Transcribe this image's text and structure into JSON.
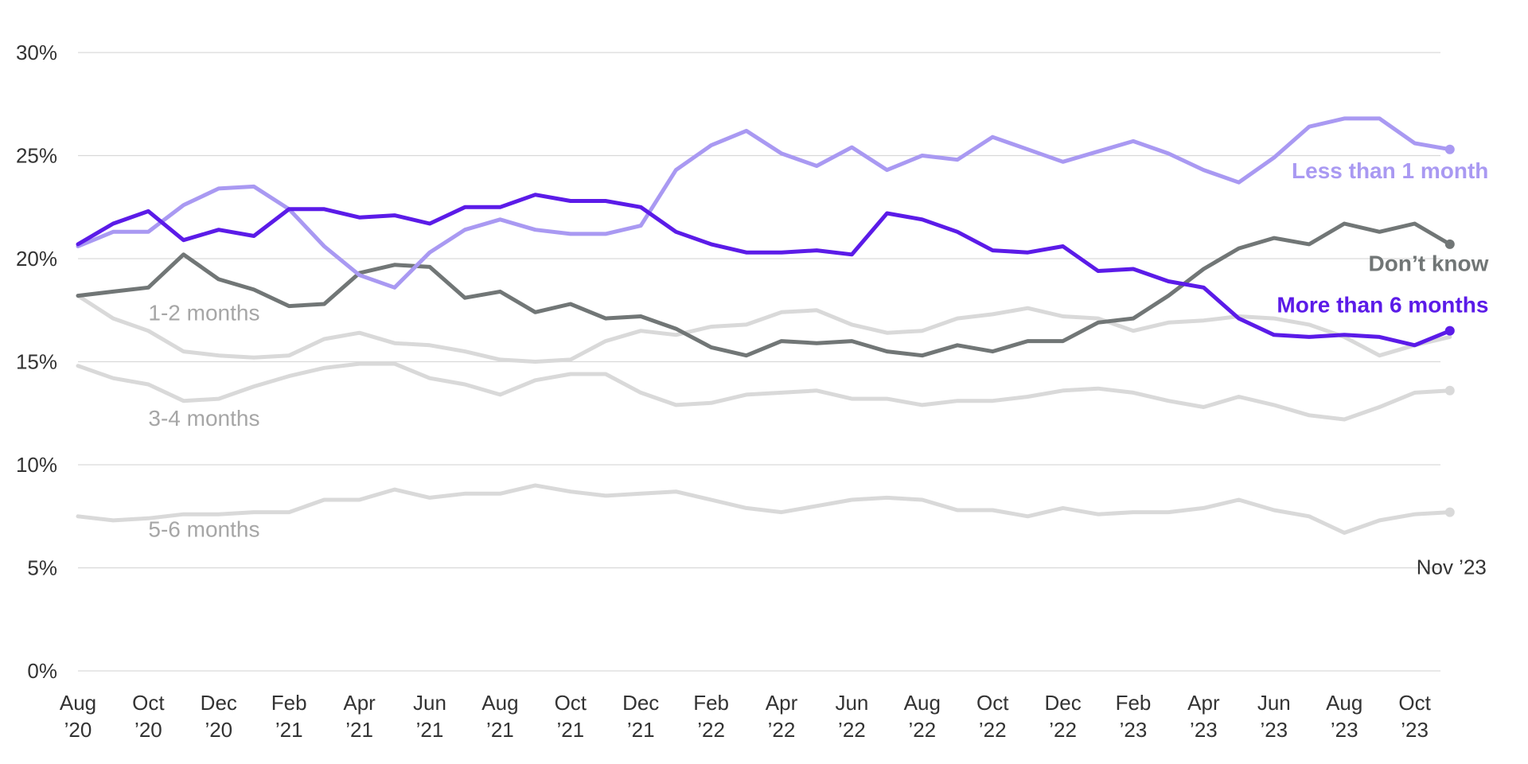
{
  "chart_data": {
    "type": "line",
    "title": "",
    "subtitle": "",
    "xlabel": "",
    "ylabel": "",
    "ylim": [
      0,
      30
    ],
    "y_ticks": [
      "0%",
      "5%",
      "10%",
      "15%",
      "20%",
      "25%",
      "30%"
    ],
    "y_tick_values": [
      0,
      5,
      10,
      15,
      20,
      25,
      30
    ],
    "grid": true,
    "x_ticks": [
      {
        "index": 0,
        "line1": "Aug",
        "line2": "’20"
      },
      {
        "index": 2,
        "line1": "Oct",
        "line2": "’20"
      },
      {
        "index": 4,
        "line1": "Dec",
        "line2": "’20"
      },
      {
        "index": 6,
        "line1": "Feb",
        "line2": "’21"
      },
      {
        "index": 8,
        "line1": "Apr",
        "line2": "’21"
      },
      {
        "index": 10,
        "line1": "Jun",
        "line2": "’21"
      },
      {
        "index": 12,
        "line1": "Aug",
        "line2": "’21"
      },
      {
        "index": 14,
        "line1": "Oct",
        "line2": "’21"
      },
      {
        "index": 16,
        "line1": "Dec",
        "line2": "’21"
      },
      {
        "index": 18,
        "line1": "Feb",
        "line2": "’22"
      },
      {
        "index": 20,
        "line1": "Apr",
        "line2": "’22"
      },
      {
        "index": 22,
        "line1": "Jun",
        "line2": "’22"
      },
      {
        "index": 24,
        "line1": "Aug",
        "line2": "’22"
      },
      {
        "index": 26,
        "line1": "Oct",
        "line2": "’22"
      },
      {
        "index": 28,
        "line1": "Dec",
        "line2": "’22"
      },
      {
        "index": 30,
        "line1": "Feb",
        "line2": "’23"
      },
      {
        "index": 32,
        "line1": "Apr",
        "line2": "’23"
      },
      {
        "index": 34,
        "line1": "Jun",
        "line2": "’23"
      },
      {
        "index": 36,
        "line1": "Aug",
        "line2": "’23"
      },
      {
        "index": 38,
        "line1": "Oct",
        "line2": "’23"
      }
    ],
    "end_label": "Nov ’23",
    "series": [
      {
        "name": "5-6 months",
        "color": "#d9d9d9",
        "label_color": "#a6a6a6",
        "label_bold": false,
        "label_anchor": "start",
        "label_at": {
          "index": 2,
          "value": 6.5
        },
        "end_marker": true,
        "values": [
          7.5,
          7.3,
          7.4,
          7.6,
          7.6,
          7.7,
          7.7,
          8.3,
          8.3,
          8.8,
          8.4,
          8.6,
          8.6,
          9.0,
          8.7,
          8.5,
          8.6,
          8.7,
          8.3,
          7.9,
          7.7,
          8.0,
          8.3,
          8.4,
          8.3,
          7.8,
          7.8,
          7.5,
          7.9,
          7.6,
          7.7,
          7.7,
          7.9,
          8.3,
          7.8,
          7.5,
          6.7,
          7.3,
          7.6,
          7.7
        ]
      },
      {
        "name": "3-4 months",
        "color": "#d9d9d9",
        "label_color": "#a6a6a6",
        "label_bold": false,
        "label_anchor": "start",
        "label_at": {
          "index": 2,
          "value": 11.9
        },
        "end_marker": true,
        "values": [
          14.8,
          14.2,
          13.9,
          13.1,
          13.2,
          13.8,
          14.3,
          14.7,
          14.9,
          14.9,
          14.2,
          13.9,
          13.4,
          14.1,
          14.4,
          14.4,
          13.5,
          12.9,
          13.0,
          13.4,
          13.5,
          13.6,
          13.2,
          13.2,
          12.9,
          13.1,
          13.1,
          13.3,
          13.6,
          13.7,
          13.5,
          13.1,
          12.8,
          13.3,
          12.9,
          12.4,
          12.2,
          12.8,
          13.5,
          13.6
        ]
      },
      {
        "name": "1-2 months",
        "color": "#d9d9d9",
        "label_color": "#a6a6a6",
        "label_bold": false,
        "label_anchor": "start",
        "label_at": {
          "index": 2,
          "value": 17.0
        },
        "end_marker": false,
        "values": [
          18.2,
          17.1,
          16.5,
          15.5,
          15.3,
          15.2,
          15.3,
          16.1,
          16.4,
          15.9,
          15.8,
          15.5,
          15.1,
          15.0,
          15.1,
          16.0,
          16.5,
          16.3,
          16.7,
          16.8,
          17.4,
          17.5,
          16.8,
          16.4,
          16.5,
          17.1,
          17.3,
          17.6,
          17.2,
          17.1,
          16.5,
          16.9,
          17.0,
          17.2,
          17.1,
          16.8,
          16.2,
          15.3,
          15.8,
          16.2
        ]
      },
      {
        "name": "Don’t know",
        "color": "#717676",
        "label_color": "#717676",
        "label_bold": true,
        "label_anchor": "end",
        "label_at": {
          "index": 40.1,
          "value": 19.4
        },
        "end_marker": true,
        "values": [
          18.2,
          18.4,
          18.6,
          20.2,
          19.0,
          18.5,
          17.7,
          17.8,
          19.3,
          19.7,
          19.6,
          18.1,
          18.4,
          17.4,
          17.8,
          17.1,
          17.2,
          16.6,
          15.7,
          15.3,
          16.0,
          15.9,
          16.0,
          15.5,
          15.3,
          15.8,
          15.5,
          16.0,
          16.0,
          16.9,
          17.1,
          18.2,
          19.5,
          20.5,
          21.0,
          20.7,
          21.7,
          21.3,
          21.7,
          20.7
        ]
      },
      {
        "name": "Less than 1 month",
        "color": "#a999f2",
        "label_color": "#a999f2",
        "label_bold": true,
        "label_anchor": "end",
        "label_at": {
          "index": 40.1,
          "value": 23.9
        },
        "end_marker": true,
        "values": [
          20.6,
          21.3,
          21.3,
          22.6,
          23.4,
          23.5,
          22.4,
          20.6,
          19.2,
          18.6,
          20.3,
          21.4,
          21.9,
          21.4,
          21.2,
          21.2,
          21.6,
          24.3,
          25.5,
          26.2,
          25.1,
          24.5,
          25.4,
          24.3,
          25.0,
          24.8,
          25.9,
          25.3,
          24.7,
          25.2,
          25.7,
          25.1,
          24.3,
          23.7,
          24.9,
          26.4,
          26.8,
          26.8,
          25.6,
          25.3
        ]
      },
      {
        "name": "More than 6 months",
        "color": "#5b1be8",
        "label_color": "#5b1be8",
        "label_bold": true,
        "label_anchor": "end",
        "label_at": {
          "index": 40.1,
          "value": 17.4
        },
        "end_marker": true,
        "values": [
          20.7,
          21.7,
          22.3,
          20.9,
          21.4,
          21.1,
          22.4,
          22.4,
          22.0,
          22.1,
          21.7,
          22.5,
          22.5,
          23.1,
          22.8,
          22.8,
          22.5,
          21.3,
          20.7,
          20.3,
          20.3,
          20.4,
          20.2,
          22.2,
          21.9,
          21.3,
          20.4,
          20.3,
          20.6,
          19.4,
          19.5,
          18.9,
          18.6,
          17.1,
          16.3,
          16.2,
          16.3,
          16.2,
          15.8,
          16.5
        ]
      }
    ]
  }
}
